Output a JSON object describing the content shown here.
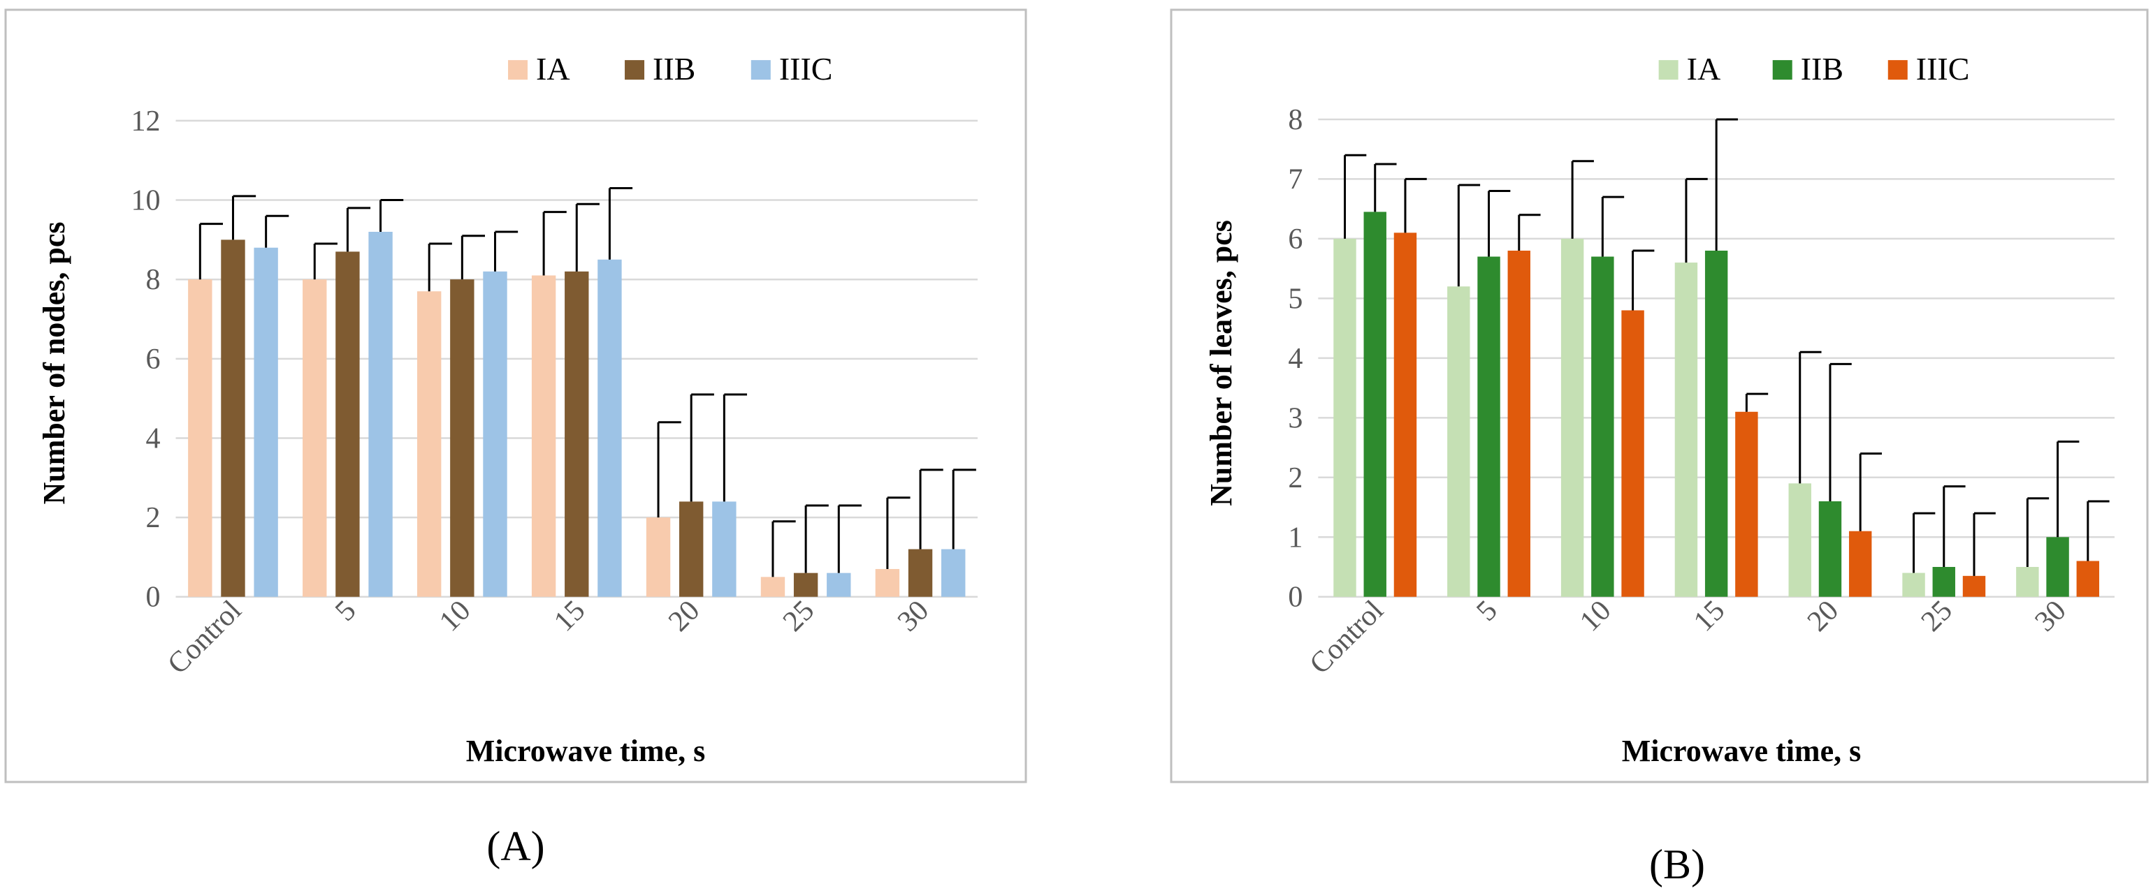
{
  "colors": {
    "A_IA": "#F8CBAD",
    "A_IIB": "#7F5B31",
    "A_IIIC": "#9DC3E6",
    "B_IA": "#C5E0B4",
    "B_IIB": "#2E8B2E",
    "B_IIIC": "#E05A0C",
    "grid": "#D9D9D9",
    "frame": "#BFBFBF",
    "text": "#000000",
    "tick": "#595959"
  },
  "chart_data": [
    {
      "panel_label": "(A)",
      "type": "bar",
      "ylabel": "Number of nodes, pcs",
      "xlabel": "Microwave time, s",
      "categories": [
        "Control",
        "5",
        "10",
        "15",
        "20",
        "25",
        "30"
      ],
      "ylim": [
        0,
        12
      ],
      "yticks": [
        0,
        2,
        4,
        6,
        8,
        10,
        12
      ],
      "grid": true,
      "legend_position": "top-right",
      "series": [
        {
          "name": "IA",
          "color_key": "A_IA",
          "values": [
            8.0,
            8.0,
            7.7,
            8.1,
            2.0,
            0.5,
            0.7
          ],
          "errors": [
            1.4,
            0.9,
            1.2,
            1.6,
            2.4,
            1.4,
            1.8
          ]
        },
        {
          "name": "IIB",
          "color_key": "A_IIB",
          "values": [
            9.0,
            8.7,
            8.0,
            8.2,
            2.4,
            0.6,
            1.2
          ],
          "errors": [
            1.1,
            1.1,
            1.1,
            1.7,
            2.7,
            1.7,
            2.0
          ]
        },
        {
          "name": "IIIC",
          "color_key": "A_IIIC",
          "values": [
            8.8,
            9.2,
            8.2,
            8.5,
            2.4,
            0.6,
            1.2
          ],
          "errors": [
            0.8,
            0.8,
            1.0,
            1.8,
            2.7,
            1.7,
            2.0
          ]
        }
      ]
    },
    {
      "panel_label": "(B)",
      "type": "bar",
      "ylabel": "Number of leaves, pcs",
      "xlabel": "Microwave time, s",
      "categories": [
        "Control",
        "5",
        "10",
        "15",
        "20",
        "25",
        "30"
      ],
      "ylim": [
        0,
        8
      ],
      "yticks": [
        0,
        1,
        2,
        3,
        4,
        5,
        6,
        7,
        8
      ],
      "grid": true,
      "legend_position": "top-right",
      "series": [
        {
          "name": "IA",
          "color_key": "B_IA",
          "values": [
            6.0,
            5.2,
            6.0,
            5.6,
            1.9,
            0.4,
            0.5
          ],
          "errors": [
            1.4,
            1.7,
            1.3,
            1.4,
            2.2,
            1.0,
            1.15
          ]
        },
        {
          "name": "IIB",
          "color_key": "B_IIB",
          "values": [
            6.45,
            5.7,
            5.7,
            5.8,
            1.6,
            0.5,
            1.0
          ],
          "errors": [
            0.8,
            1.1,
            1.0,
            2.2,
            2.3,
            1.35,
            1.6
          ]
        },
        {
          "name": "IIIC",
          "color_key": "B_IIIC",
          "values": [
            6.1,
            5.8,
            4.8,
            3.1,
            1.1,
            0.35,
            0.6
          ],
          "errors": [
            0.9,
            0.6,
            1.0,
            0.3,
            1.3,
            1.05,
            1.0
          ]
        }
      ]
    }
  ]
}
